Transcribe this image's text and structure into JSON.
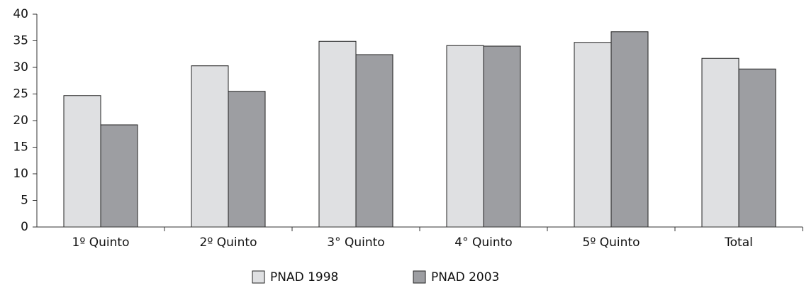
{
  "chart_data": {
    "type": "bar",
    "categories": [
      "1º Quinto",
      "2º Quinto",
      "3° Quinto",
      "4° Quinto",
      "5º Quinto",
      "Total"
    ],
    "series": [
      {
        "name": "PNAD 1998",
        "color": "#dfe0e2",
        "values": [
          24.7,
          30.3,
          34.9,
          34.1,
          34.7,
          31.7
        ]
      },
      {
        "name": "PNAD 2003",
        "color": "#9d9ea2",
        "values": [
          19.2,
          25.5,
          32.4,
          34.0,
          36.7,
          29.7
        ]
      }
    ],
    "ylim": [
      0,
      40
    ],
    "yticks": [
      0,
      5,
      10,
      15,
      20,
      25,
      30,
      35,
      40
    ],
    "grid": false
  }
}
